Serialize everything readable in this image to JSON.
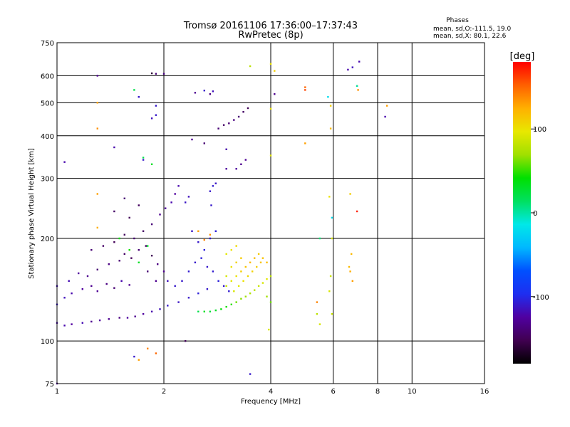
{
  "header": {
    "title_line1": "Tromsø 20161106 17:36:00–17:37:43",
    "title_line2": "RwPretec (8p)"
  },
  "stats": {
    "heading": "Phases",
    "line_o": "mean, sd,O:-111.5, 19.0",
    "line_x": "mean, sd,X:  80.1, 22.6"
  },
  "colorbar": {
    "label": "[deg]",
    "ticks": [
      {
        "value": 100,
        "label": "100"
      },
      {
        "value": 0,
        "label": "0"
      },
      {
        "value": -100,
        "label": "-100"
      }
    ],
    "range": [
      -180,
      180
    ],
    "colors": [
      "#000000",
      "#400050",
      "#5000a0",
      "#1e2ef0",
      "#0050ff",
      "#00b8ff",
      "#00e8e8",
      "#00e060",
      "#00e000",
      "#a0e000",
      "#e8e800",
      "#ffb000",
      "#ff6000",
      "#ff0000"
    ]
  },
  "chart_data": {
    "type": "scatter",
    "title": "Tromsø 20161106 17:36:00–17:37:43",
    "subtitle": "RwPretec (8p)",
    "xlabel": "Frequency [MHz]",
    "ylabel": "Stationary phase Virtual Height [km]",
    "xscale": "log",
    "yscale": "log",
    "xlim": [
      1,
      16
    ],
    "ylim": [
      75,
      750
    ],
    "xticks": [
      {
        "value": 1,
        "label": "1"
      },
      {
        "value": 2,
        "label": "2"
      },
      {
        "value": 4,
        "label": "4"
      },
      {
        "value": 6,
        "label": "6"
      },
      {
        "value": 8,
        "label": "8"
      },
      {
        "value": 10,
        "label": "10"
      },
      {
        "value": 16,
        "label": "16"
      }
    ],
    "yticks": [
      {
        "value": 75,
        "label": "75"
      },
      {
        "value": 100,
        "label": "100"
      },
      {
        "value": 200,
        "label": "200"
      },
      {
        "value": 300,
        "label": "300"
      },
      {
        "value": 400,
        "label": "400"
      },
      {
        "value": 500,
        "label": "500"
      },
      {
        "value": 600,
        "label": "600"
      },
      {
        "value": 750,
        "label": "750"
      }
    ],
    "grid": true,
    "color_scale": "phase [deg], -180 to 180",
    "series": [
      {
        "points": [
          [
            1.0,
            113,
            -120
          ],
          [
            1.05,
            111,
            -120
          ],
          [
            1.1,
            112,
            -125
          ],
          [
            1.18,
            113,
            -118
          ],
          [
            1.25,
            114,
            -130
          ],
          [
            1.32,
            115,
            -125
          ],
          [
            1.4,
            116,
            -130
          ],
          [
            1.5,
            117,
            -135
          ],
          [
            1.58,
            117,
            -125
          ],
          [
            1.66,
            118,
            -130
          ],
          [
            1.75,
            120,
            -125
          ],
          [
            1.85,
            122,
            -120
          ],
          [
            1.95,
            124,
            -115
          ],
          [
            2.05,
            127,
            -110
          ],
          [
            2.2,
            130,
            -112
          ],
          [
            2.35,
            134,
            -110
          ],
          [
            2.5,
            138,
            -105
          ],
          [
            2.65,
            142,
            -110
          ],
          [
            1.0,
            128,
            -110
          ],
          [
            1.05,
            134,
            -115
          ],
          [
            1.1,
            138,
            -120
          ],
          [
            1.18,
            142,
            -125
          ],
          [
            1.25,
            145,
            -130
          ],
          [
            1.3,
            140,
            -128
          ],
          [
            1.38,
            147,
            -135
          ],
          [
            1.45,
            143,
            -140
          ],
          [
            1.52,
            150,
            -120
          ],
          [
            1.6,
            146,
            -130
          ],
          [
            1.0,
            145,
            -115
          ],
          [
            1.08,
            150,
            -118
          ],
          [
            1.15,
            158,
            -125
          ],
          [
            1.22,
            155,
            -130
          ],
          [
            1.3,
            162,
            -140
          ],
          [
            1.4,
            168,
            -135
          ],
          [
            1.5,
            172,
            -140
          ],
          [
            1.55,
            180,
            -145
          ],
          [
            1.62,
            175,
            -150
          ],
          [
            1.7,
            185,
            -140
          ],
          [
            1.78,
            190,
            -145
          ],
          [
            1.85,
            178,
            -150
          ],
          [
            1.92,
            168,
            -135
          ],
          [
            2.0,
            160,
            -130
          ],
          [
            1.65,
            200,
            -140
          ],
          [
            1.75,
            210,
            -145
          ],
          [
            1.85,
            220,
            -138
          ],
          [
            1.95,
            235,
            -130
          ],
          [
            2.02,
            245,
            -125
          ],
          [
            2.1,
            255,
            -120
          ],
          [
            2.15,
            270,
            -125
          ],
          [
            2.2,
            285,
            -120
          ],
          [
            1.45,
            195,
            -150
          ],
          [
            1.55,
            205,
            -148
          ],
          [
            1.35,
            190,
            -145
          ],
          [
            1.25,
            185,
            -140
          ],
          [
            1.6,
            230,
            -150
          ],
          [
            1.7,
            250,
            -148
          ],
          [
            1.55,
            262,
            -140
          ],
          [
            1.45,
            240,
            -145
          ],
          [
            1.8,
            160,
            -140
          ],
          [
            1.9,
            150,
            -130
          ],
          [
            2.05,
            150,
            -115
          ],
          [
            2.15,
            145,
            -110
          ],
          [
            2.25,
            150,
            -110
          ],
          [
            2.35,
            160,
            -108
          ],
          [
            2.45,
            170,
            -110
          ],
          [
            2.55,
            175,
            -105
          ],
          [
            2.65,
            165,
            -110
          ],
          [
            2.75,
            160,
            -108
          ],
          [
            2.85,
            150,
            -105
          ],
          [
            2.95,
            145,
            -110
          ],
          [
            3.05,
            140,
            -108
          ],
          [
            2.6,
            185,
            -105
          ],
          [
            2.5,
            195,
            -110
          ],
          [
            2.4,
            210,
            -112
          ],
          [
            2.7,
            200,
            -110
          ],
          [
            2.8,
            210,
            -105
          ],
          [
            2.7,
            275,
            -110
          ],
          [
            2.75,
            285,
            -108
          ],
          [
            2.8,
            290,
            -112
          ],
          [
            2.72,
            250,
            -110
          ],
          [
            2.3,
            255,
            -112
          ],
          [
            2.35,
            265,
            -115
          ],
          [
            2.85,
            420,
            -140
          ],
          [
            2.95,
            430,
            -145
          ],
          [
            3.05,
            435,
            -140
          ],
          [
            3.15,
            445,
            -135
          ],
          [
            3.25,
            455,
            -140
          ],
          [
            3.35,
            470,
            -145
          ],
          [
            3.45,
            482,
            -150
          ],
          [
            2.6,
            380,
            -140
          ],
          [
            2.7,
            530,
            -135
          ],
          [
            2.45,
            535,
            -130
          ],
          [
            3.2,
            320,
            -125
          ],
          [
            3.3,
            330,
            -130
          ],
          [
            3.4,
            340,
            -128
          ],
          [
            1.3,
            600,
            -130
          ],
          [
            1.85,
            610,
            -160
          ],
          [
            1.9,
            608,
            -140
          ],
          [
            2.0,
            608,
            -135
          ],
          [
            1.05,
            335,
            -120
          ],
          [
            1.45,
            370,
            -120
          ],
          [
            1.75,
            340,
            -110
          ],
          [
            1.9,
            460,
            -110
          ],
          [
            1.85,
            450,
            -115
          ],
          [
            2.3,
            100,
            -150
          ],
          [
            1.65,
            90,
            -110
          ],
          [
            1.0,
            75,
            -130
          ],
          [
            3.5,
            80,
            -110
          ],
          [
            6.6,
            625,
            -120
          ],
          [
            6.8,
            635,
            -115
          ],
          [
            7.1,
            660,
            -120
          ],
          [
            8.4,
            455,
            -120
          ],
          [
            4.1,
            530,
            -130
          ],
          [
            1.9,
            490,
            -110
          ],
          [
            1.7,
            520,
            -110
          ],
          [
            2.6,
            543,
            -110
          ],
          [
            2.75,
            540,
            -115
          ],
          [
            2.4,
            390,
            -130
          ],
          [
            3.0,
            365,
            -120
          ],
          [
            3.0,
            320,
            -125
          ],
          [
            2.5,
            122,
            20
          ],
          [
            2.6,
            122,
            30
          ],
          [
            2.7,
            122,
            25
          ],
          [
            2.8,
            123,
            30
          ],
          [
            2.9,
            124,
            40
          ],
          [
            3.0,
            126,
            45
          ],
          [
            3.1,
            128,
            50
          ],
          [
            3.2,
            130,
            60
          ],
          [
            3.3,
            133,
            65
          ],
          [
            3.4,
            135,
            70
          ],
          [
            3.5,
            138,
            75
          ],
          [
            3.6,
            141,
            80
          ],
          [
            3.7,
            145,
            85
          ],
          [
            3.8,
            148,
            90
          ],
          [
            3.9,
            152,
            95
          ],
          [
            3.15,
            140,
            90
          ],
          [
            3.25,
            145,
            95
          ],
          [
            3.35,
            150,
            100
          ],
          [
            3.45,
            155,
            105
          ],
          [
            3.55,
            160,
            108
          ],
          [
            3.65,
            165,
            110
          ],
          [
            3.75,
            170,
            115
          ],
          [
            3.1,
            150,
            95
          ],
          [
            3.2,
            155,
            100
          ],
          [
            3.3,
            160,
            110
          ],
          [
            3.4,
            165,
            115
          ],
          [
            3.5,
            170,
            120
          ],
          [
            3.6,
            175,
            118
          ],
          [
            3.0,
            145,
            85
          ],
          [
            3.0,
            155,
            90
          ],
          [
            3.1,
            165,
            100
          ],
          [
            3.2,
            170,
            108
          ],
          [
            3.3,
            175,
            112
          ],
          [
            3.0,
            180,
            95
          ],
          [
            3.1,
            185,
            100
          ],
          [
            3.2,
            190,
            105
          ],
          [
            3.7,
            180,
            112
          ],
          [
            3.8,
            175,
            115
          ],
          [
            3.9,
            170,
            118
          ],
          [
            1.3,
            215,
            125
          ],
          [
            2.5,
            210,
            130
          ],
          [
            2.6,
            198,
            140
          ],
          [
            2.7,
            205,
            135
          ],
          [
            1.3,
            270,
            130
          ],
          [
            1.3,
            420,
            135
          ],
          [
            1.3,
            500,
            130
          ],
          [
            4.0,
            130,
            60
          ],
          [
            3.9,
            135,
            70
          ],
          [
            4.0,
            155,
            80
          ],
          [
            3.95,
            108,
            90
          ],
          [
            4.1,
            620,
            110
          ],
          [
            4.0,
            650,
            100
          ],
          [
            3.5,
            640,
            80
          ],
          [
            4.0,
            480,
            100
          ],
          [
            4.0,
            350,
            95
          ],
          [
            5.0,
            380,
            130
          ],
          [
            5.9,
            490,
            110
          ],
          [
            5.9,
            420,
            120
          ],
          [
            5.85,
            265,
            100
          ],
          [
            5.95,
            200,
            90
          ],
          [
            5.9,
            155,
            85
          ],
          [
            5.85,
            140,
            90
          ],
          [
            5.95,
            120,
            85
          ],
          [
            5.4,
            120,
            80
          ],
          [
            5.5,
            112,
            90
          ],
          [
            6.7,
            270,
            110
          ],
          [
            6.75,
            180,
            120
          ],
          [
            6.7,
            160,
            125
          ],
          [
            6.65,
            165,
            120
          ],
          [
            6.8,
            150,
            130
          ],
          [
            7.0,
            560,
            140
          ],
          [
            7.05,
            545,
            135
          ],
          [
            7.0,
            240,
            170
          ],
          [
            5.0,
            545,
            160
          ],
          [
            5.0,
            555,
            150
          ],
          [
            8.5,
            490,
            130
          ],
          [
            5.5,
            200,
            10
          ],
          [
            1.75,
            345,
            20
          ],
          [
            1.65,
            545,
            20
          ],
          [
            1.5,
            200,
            40
          ],
          [
            1.6,
            185,
            45
          ],
          [
            1.7,
            170,
            30
          ],
          [
            1.8,
            190,
            30
          ],
          [
            1.85,
            330,
            30
          ],
          [
            7.0,
            560,
            0
          ],
          [
            5.8,
            520,
            -20
          ],
          [
            5.95,
            230,
            -20
          ],
          [
            5.4,
            130,
            140
          ],
          [
            1.8,
            95,
            140
          ],
          [
            1.9,
            92,
            150
          ],
          [
            1.7,
            88,
            130
          ]
        ]
      }
    ]
  }
}
